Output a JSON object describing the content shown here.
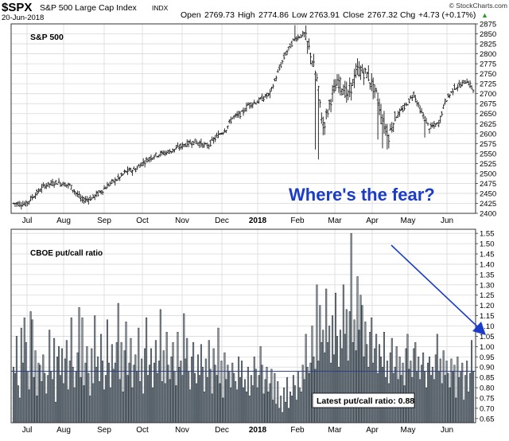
{
  "header": {
    "symbol": "$SPX",
    "name": "S&P 500 Large Cap Index",
    "exchange": "INDX",
    "date": "20-Jun-2018",
    "open_label": "Open",
    "open": "2769.73",
    "high_label": "High",
    "high": "2774.86",
    "low_label": "Low",
    "low": "2763.91",
    "close_label": "Close",
    "close": "2767.32",
    "chg_label": "Chg",
    "chg": "+4.73 (+0.17%)",
    "chg_arrow": "▲",
    "brand": "© StockCharts.com"
  },
  "colors": {
    "bar": "#8d99a3",
    "bar_edge": "#1f262c",
    "ohlc": "#1a1a1a",
    "grid": "#d9d9d9",
    "frame": "#333333",
    "annotation": "#1a3cc8",
    "hline": "#2b3f87",
    "up_arrow": "#2e9a2e"
  },
  "chart_data": [
    {
      "type": "ohlc",
      "title": "S&P 500",
      "series_name": "S&P 500",
      "x_labels": [
        "Jul",
        "Aug",
        "Sep",
        "Oct",
        "Nov",
        "Dec",
        "2018",
        "Feb",
        "Mar",
        "Apr",
        "May",
        "Jun"
      ],
      "ylim": [
        2400,
        2875
      ],
      "yticks": [
        2400,
        2425,
        2450,
        2475,
        2500,
        2525,
        2550,
        2575,
        2600,
        2625,
        2650,
        2675,
        2700,
        2725,
        2750,
        2775,
        2800,
        2825,
        2850,
        2875
      ],
      "annotation": "Where's the fear?",
      "anchors": [
        [
          0,
          2425
        ],
        [
          8,
          2423
        ],
        [
          12,
          2440
        ],
        [
          20,
          2470
        ],
        [
          28,
          2478
        ],
        [
          36,
          2470
        ],
        [
          44,
          2433
        ],
        [
          50,
          2438
        ],
        [
          56,
          2455
        ],
        [
          62,
          2475
        ],
        [
          68,
          2490
        ],
        [
          72,
          2505
        ],
        [
          78,
          2510
        ],
        [
          82,
          2525
        ],
        [
          90,
          2545
        ],
        [
          100,
          2555
        ],
        [
          110,
          2573
        ],
        [
          116,
          2580
        ],
        [
          124,
          2568
        ],
        [
          130,
          2592
        ],
        [
          136,
          2612
        ],
        [
          140,
          2640
        ],
        [
          146,
          2650
        ],
        [
          150,
          2672
        ],
        [
          156,
          2680
        ],
        [
          164,
          2700
        ],
        [
          168,
          2742
        ],
        [
          174,
          2800
        ],
        [
          180,
          2838
        ],
        [
          186,
          2850
        ],
        [
          190,
          2800
        ],
        [
          194,
          2735
        ],
        [
          198,
          2615
        ],
        [
          204,
          2700
        ],
        [
          208,
          2730
        ],
        [
          214,
          2695
        ],
        [
          220,
          2760
        ],
        [
          226,
          2750
        ],
        [
          232,
          2700
        ],
        [
          236,
          2635
        ],
        [
          240,
          2595
        ],
        [
          244,
          2640
        ],
        [
          250,
          2665
        ],
        [
          256,
          2700
        ],
        [
          260,
          2660
        ],
        [
          266,
          2615
        ],
        [
          272,
          2625
        ],
        [
          276,
          2680
        ],
        [
          282,
          2715
        ],
        [
          286,
          2722
        ],
        [
          290,
          2733
        ],
        [
          294,
          2710
        ],
        [
          300,
          2740
        ],
        [
          304,
          2775
        ],
        [
          310,
          2785
        ],
        [
          314,
          2778
        ],
        [
          318,
          2768
        ]
      ],
      "dips": [
        [
          188,
          2800
        ],
        [
          193,
          2560
        ],
        [
          195,
          2535
        ],
        [
          197,
          2625
        ],
        [
          233,
          2585
        ],
        [
          236,
          2563
        ],
        [
          239,
          2560
        ],
        [
          263,
          2590
        ],
        [
          266,
          2600
        ]
      ]
    },
    {
      "type": "bar",
      "title": "CBOE put/call ratio",
      "series_name": "CBOE put/call ratio",
      "x_labels": [
        "Jul",
        "Aug",
        "Sep",
        "Oct",
        "Nov",
        "Dec",
        "2018",
        "Feb",
        "Mar",
        "Apr",
        "May",
        "Jun"
      ],
      "ylim": [
        0.63,
        1.57
      ],
      "yticks": [
        0.65,
        0.7,
        0.75,
        0.8,
        0.85,
        0.9,
        0.95,
        1.0,
        1.05,
        1.1,
        1.15,
        1.2,
        1.25,
        1.3,
        1.35,
        1.4,
        1.45,
        1.5,
        1.55
      ],
      "reference_line": 0.88,
      "latest_label": "Latest put/call ratio: 0.88",
      "latest_value": 0.88,
      "values": [
        0.9,
        0.87,
        1.05,
        0.81,
        0.75,
        1.09,
        0.92,
        1.14,
        1.02,
        0.88,
        0.79,
        1.17,
        1.13,
        0.85,
        0.98,
        0.76,
        0.92,
        0.91,
        0.83,
        0.96,
        0.87,
        0.77,
        0.86,
        1.08,
        0.88,
        0.84,
        1.04,
        0.73,
        0.95,
        1.0,
        0.86,
        0.99,
        0.82,
        0.94,
        1.03,
        0.79,
        0.93,
        1.14,
        0.9,
        0.8,
        0.88,
        0.97,
        1.19,
        0.85,
        1.14,
        0.81,
        0.92,
        1.0,
        0.87,
        0.76,
        0.99,
        0.82,
        1.15,
        0.9,
        0.95,
        0.83,
        1.06,
        0.93,
        0.79,
        0.86,
        1.13,
        0.92,
        0.8,
        1.01,
        0.89,
        0.92,
        1.02,
        1.21,
        0.84,
        1.02,
        0.78,
        0.98,
        1.12,
        0.86,
        0.92,
        1.04,
        0.8,
        0.91,
        0.96,
        0.88,
        1.09,
        0.83,
        0.94,
        0.77,
        0.99,
        1.14,
        0.86,
        0.91,
        0.99,
        0.8,
        0.92,
        1.03,
        0.87,
        0.93,
        1.18,
        0.83,
        0.98,
        0.82,
        1.07,
        0.91,
        0.84,
        0.95,
        1.02,
        0.88,
        0.81,
        1.07,
        0.9,
        0.93,
        0.86,
        1.16,
        0.94,
        1.04,
        0.88,
        0.79,
        0.95,
        1.02,
        0.87,
        0.82,
        0.96,
        0.86,
        1.01,
        0.9,
        0.78,
        0.94,
        0.85,
        1.03,
        0.89,
        0.77,
        0.99,
        0.91,
        0.86,
        1.09,
        0.82,
        0.93,
        0.75,
        0.97,
        0.84,
        0.91,
        0.88,
        0.8,
        0.92,
        0.87,
        0.83,
        0.79,
        0.95,
        0.85,
        0.93,
        0.8,
        0.84,
        0.78,
        0.9,
        0.76,
        0.86,
        0.81,
        0.95,
        0.89,
        0.8,
        0.86,
        1.0,
        0.91,
        0.77,
        0.84,
        0.9,
        0.78,
        0.82,
        0.89,
        0.74,
        0.87,
        0.72,
        0.83,
        0.7,
        0.76,
        0.68,
        0.8,
        0.73,
        0.85,
        0.7,
        0.78,
        0.76,
        0.86,
        0.81,
        0.74,
        0.88,
        0.8,
        0.78,
        0.91,
        0.84,
        1.06,
        0.9,
        0.87,
        0.92,
        1.1,
        0.95,
        0.89,
        1.3,
        0.93,
        1.2,
        1.02,
        1.08,
        0.97,
        1.28,
        1.02,
        1.1,
        0.92,
        1.15,
        0.96,
        1.26,
        1.05,
        0.9,
        1.08,
        0.99,
        1.3,
        1.06,
        1.18,
        0.93,
        1.17,
        1.55,
        1.02,
        1.13,
        0.98,
        1.34,
        1.08,
        1.25,
        1.2,
        0.95,
        1.12,
        1.01,
        0.9,
        1.07,
        1.14,
        0.92,
        0.99,
        1.06,
        0.87,
        1.01,
        0.95,
        0.9,
        1.07,
        0.85,
        0.93,
        0.82,
        0.97,
        1.04,
        0.87,
        0.9,
        1.0,
        0.84,
        0.95,
        0.86,
        0.92,
        0.81,
        0.99,
        1.06,
        0.89,
        0.93,
        0.85,
        0.99,
        1.02,
        0.88,
        0.95,
        0.84,
        0.91,
        0.97,
        0.88,
        0.8,
        0.92,
        0.95,
        0.86,
        0.9,
        0.84,
        0.96,
        1.06,
        0.88,
        0.94,
        0.82,
        0.98,
        0.86,
        0.93,
        0.87,
        0.8,
        0.94,
        0.88,
        0.91,
        0.75,
        0.95,
        0.85,
        0.88,
        0.92,
        0.74,
        0.86,
        0.93,
        0.78,
        0.87,
        1.03,
        0.88
      ]
    }
  ]
}
